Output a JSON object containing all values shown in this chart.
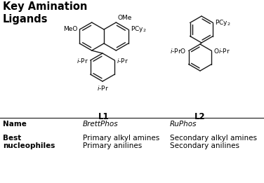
{
  "title": "Key Amination\nLigands",
  "title_fontsize": 10.5,
  "title_fontweight": "bold",
  "bg_color": "#ffffff",
  "text_color": "#000000",
  "label_L1": "L1",
  "label_L2": "L2",
  "name_label": "Name",
  "name_L1": "BrettPhos",
  "name_L2": "RuPhos",
  "best_label_line1": "Best",
  "best_label_line2": "nucleophiles",
  "best_L1_line1": "Primary alkyl amines",
  "best_L1_line2": "Primary anilines",
  "best_L2_line1": "Secondary alkyl amines",
  "best_L2_line2": "Secondary anilines",
  "lw": 1.0,
  "bond_color": "#1a1a1a",
  "figw": 3.76,
  "figh": 2.61,
  "dpi": 100
}
